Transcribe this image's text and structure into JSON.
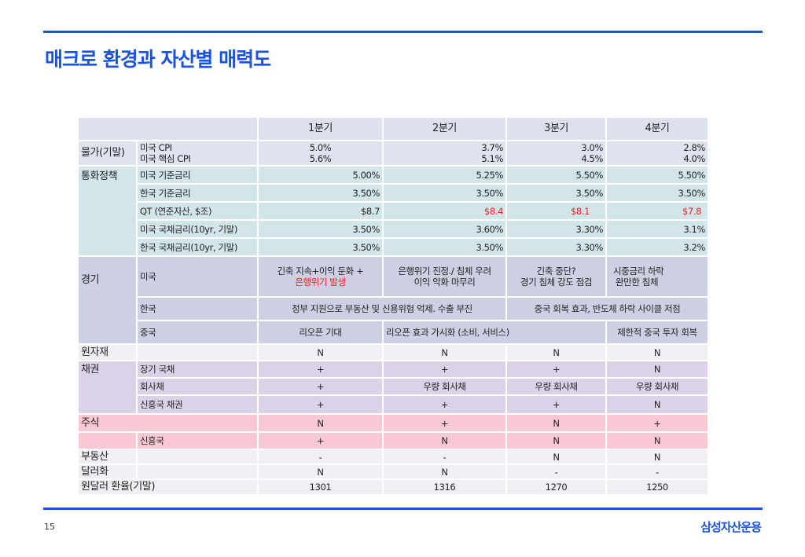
{
  "title": "매크로 환경과 자산별 매력도",
  "page_number": "15",
  "brand": "삼성자산운용",
  "colors": {
    "accent": "#1a53e0",
    "negative": "#f02020"
  },
  "table": {
    "quarters": [
      "1분기",
      "2분기",
      "3분기",
      "4분기"
    ],
    "prices": {
      "group": "물가(기말)",
      "label1": "미국 CPI",
      "label2": "미국 핵심 CPI",
      "v1": [
        "5.0%",
        "3.7%",
        "3.0%",
        "2.8%"
      ],
      "v2": [
        "5.6%",
        "5.1%",
        "4.5%",
        "4.0%"
      ]
    },
    "monetary": {
      "group": "통화정책",
      "rows": [
        {
          "label": "미국 기준금리",
          "values": [
            "5.00%",
            "5.25%",
            "5.50%",
            "5.50%"
          ]
        },
        {
          "label": "한국 기준금리",
          "values": [
            "3.50%",
            "3.50%",
            "3.50%",
            "3.50%"
          ]
        },
        {
          "label": "QT (연준자산, $조)",
          "values": [
            "$8.7",
            "$8.4",
            "$8.1",
            "$7.8"
          ]
        },
        {
          "label": "미국 국채금리(10yr, 기말)",
          "values": [
            "3.50%",
            "3.60%",
            "3.30%",
            "3.1%"
          ]
        },
        {
          "label": "한국 국채금리(10yr, 기말)",
          "values": [
            "3.50%",
            "3.50%",
            "3.30%",
            "3.2%"
          ]
        }
      ]
    },
    "economy": {
      "group": "경기",
      "us": {
        "label": "미국",
        "q1_line1": "긴축 지속+이익 둔화 +",
        "q1_line2": "은행위기 발생",
        "q2_line1": "은행위기 진정./ 침체 우려",
        "q2_line2": "이익 악화 마무리",
        "q3_line1": "긴축 중단?",
        "q3_line2": "경기 침체 강도 점검",
        "q4_line1": "시중금리 하락",
        "q4_line2": "완만한 침체"
      },
      "kr": {
        "label": "한국",
        "h1": "정부 지원으로 부동산 및 신용위험 억제. 수출 부진",
        "h2": "중국 회복 효과, 반도체 하락 사이클 저점"
      },
      "cn": {
        "label": "중국",
        "q1": "리오픈  기대",
        "q23": "리오픈 효과 가시화 (소비, 서비스)",
        "q4": "제한적 중국 투자 회복"
      }
    },
    "commodities": {
      "label": "원자재",
      "values": [
        "N",
        "N",
        "N",
        "N"
      ]
    },
    "bonds": {
      "group": "채권",
      "rows": [
        {
          "label": "장기 국채",
          "values": [
            "+",
            "+",
            "+",
            "N"
          ]
        },
        {
          "label": "회사채",
          "values": [
            "+",
            "우량 회사채",
            "우량 회사채",
            "우량 회사채"
          ]
        },
        {
          "label": "신흥국 채권",
          "values": [
            "+",
            "+",
            "+",
            "N"
          ]
        }
      ]
    },
    "equities": {
      "label": "주식",
      "values": [
        "N",
        "+",
        "N",
        "+"
      ]
    },
    "em_equities": {
      "label": "신흥국",
      "values": [
        "+",
        "N",
        "N",
        "N"
      ]
    },
    "real_estate": {
      "label": "부동산",
      "values": [
        "-",
        "-",
        "N",
        "N"
      ]
    },
    "dollar": {
      "label": "달러화",
      "values": [
        "N",
        "N",
        "-",
        "-"
      ]
    },
    "usdkrw": {
      "label": "원달러 환율(기말)",
      "values": [
        "1301",
        "1316",
        "1270",
        "1250"
      ]
    }
  }
}
